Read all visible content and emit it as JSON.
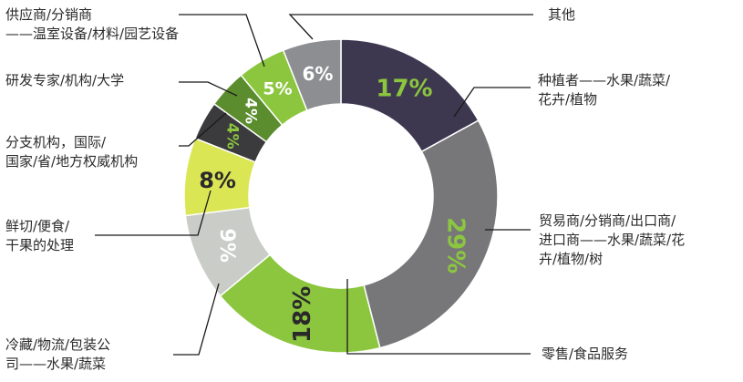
{
  "chart_data": {
    "type": "pie",
    "title": "",
    "categories": [
      "种植者——水果/蔬菜/花卉/植物",
      "贸易商/分销商/出口商/进口商——水果/蔬菜/花卉/植物/树",
      "零售/食品服务",
      "冷藏/物流/包装公司——水果/蔬菜",
      "鲜切/便食/干果的处理",
      "分支机构，国际/国家/省/地方权威机构",
      "研发专家/机构/大学",
      "供应商/分销商——温室设备/材料/园艺设备",
      "其他"
    ],
    "values": [
      17,
      29,
      18,
      9,
      8,
      4,
      4,
      5,
      6
    ],
    "value_labels": [
      "17%",
      "29%",
      "18%",
      "9%",
      "8%",
      "4%",
      "4%",
      "5%",
      "6%"
    ],
    "colors": [
      "#3d3850",
      "#77777a",
      "#8cc63f",
      "#c9ccc7",
      "#dbe655",
      "#3b3b3d",
      "#5b8c2e",
      "#8cc63f",
      "#8d8e91"
    ],
    "value_label_colors": [
      "#8cc63f",
      "#8cc63f",
      "#2a2a2a",
      "#ffffff",
      "#2a2a2a",
      "#8cc63f",
      "#ffffff",
      "#ffffff",
      "#ffffff"
    ],
    "legend_lines": [
      [
        "种植者——水果/蔬菜/",
        "花卉/植物"
      ],
      [
        "贸易商/分销商/出口商/",
        "进口商——水果/蔬菜/花",
        "卉/植物/树"
      ],
      [
        "零售/食品服务"
      ],
      [
        "冷藏/物流/包装公",
        "司——水果/蔬菜"
      ],
      [
        "鲜切/便食/",
        "干果的处理"
      ],
      [
        "分支机构，国际/",
        "国家/省/地方权威机构"
      ],
      [
        "研发专家/机构/大学"
      ],
      [
        "供应商/分销商",
        "——温室设备/材料/园艺设备"
      ],
      [
        "其他"
      ]
    ]
  }
}
